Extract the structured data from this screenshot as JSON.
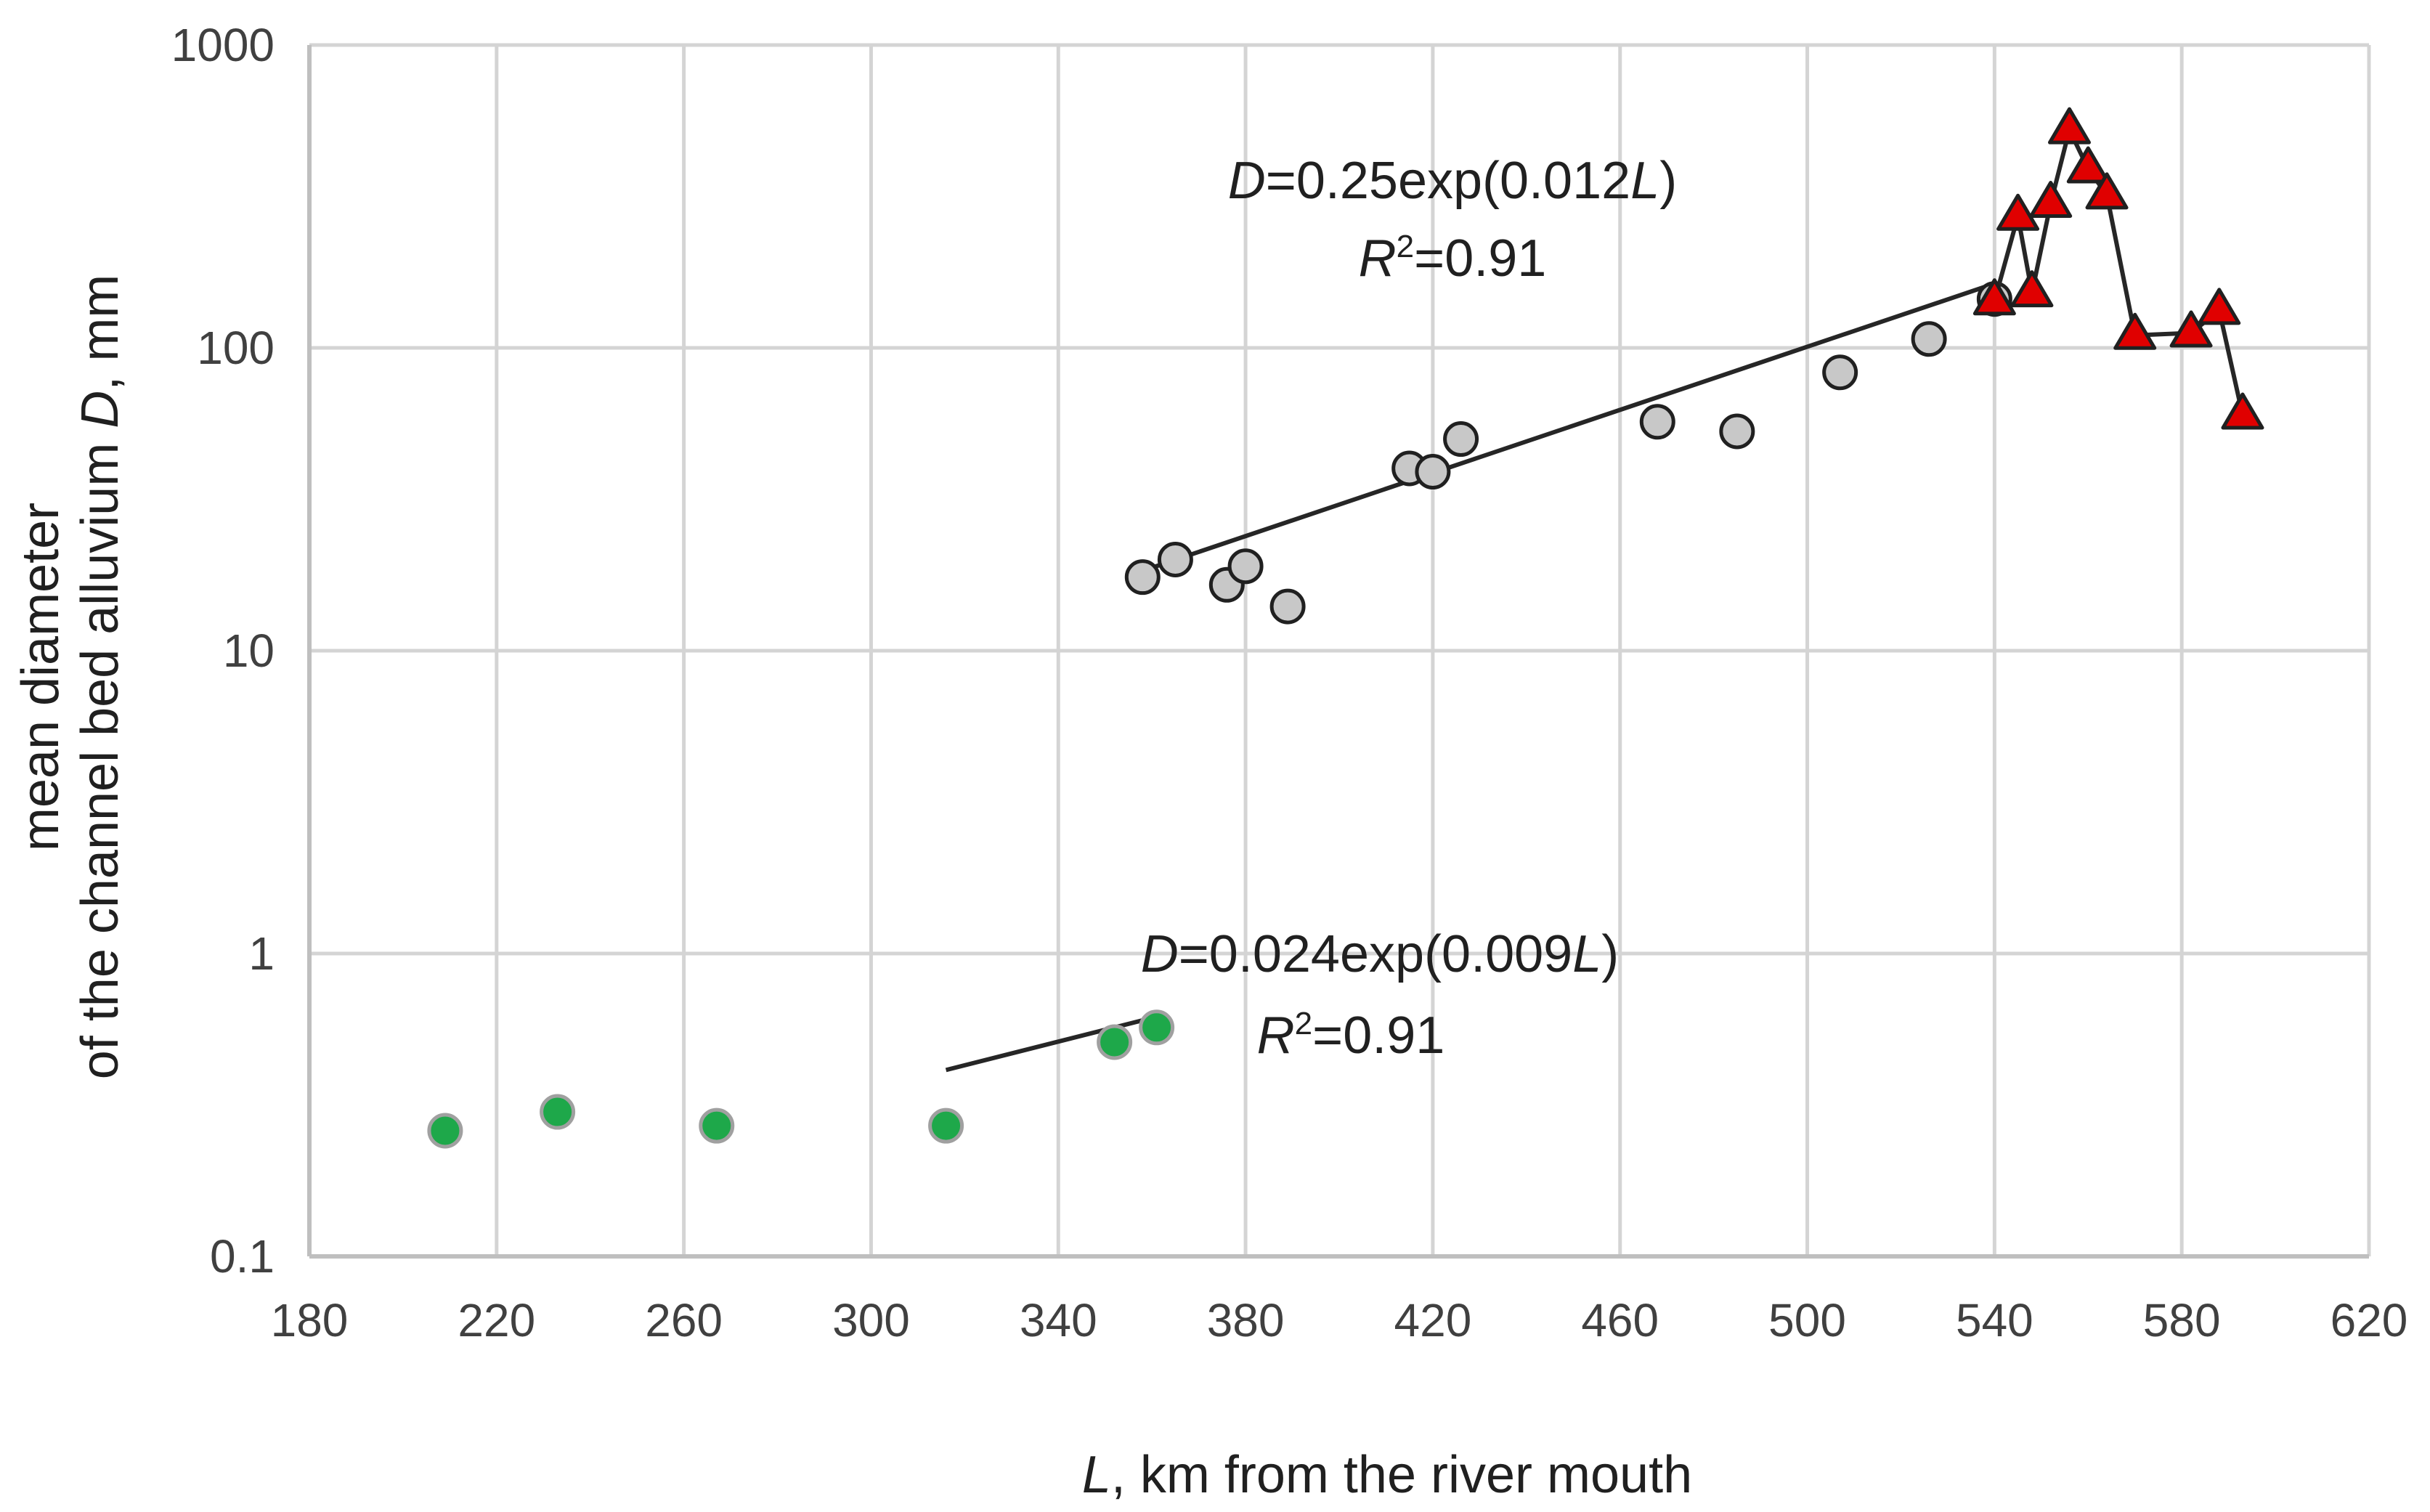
{
  "chart_data": {
    "type": "scatter",
    "xlabel_var": "L",
    "xlabel_rest": ", km from the river mouth",
    "ylabel_line1": "mean diameter",
    "ylabel_line2_prefix": "of the channel bed alluvium ",
    "ylabel_var": "D",
    "ylabel_line2_suffix": ", mm",
    "xlim": [
      180,
      620
    ],
    "ylim": [
      0.1,
      1000
    ],
    "yscale": "log",
    "grid": true,
    "x_ticks": [
      180,
      220,
      260,
      300,
      340,
      380,
      420,
      460,
      500,
      540,
      580,
      620
    ],
    "x_tick_labels": [
      "180",
      "220",
      "260",
      "300",
      "340",
      "380",
      "420",
      "460",
      "500",
      "540",
      "580",
      "620"
    ],
    "y_ticks": [
      0.1,
      1,
      10,
      100,
      1000
    ],
    "y_tick_labels": [
      "0.1",
      "1",
      "10",
      "100",
      "1000"
    ],
    "series": [
      {
        "name": "green points",
        "marker": "circle",
        "color": "#1ea84a",
        "edge": "#a0a0a0",
        "x": [
          209,
          233,
          267,
          316,
          352,
          361
        ],
        "y": [
          0.26,
          0.3,
          0.27,
          0.27,
          0.51,
          0.57
        ]
      },
      {
        "name": "grey points",
        "marker": "circle",
        "color": "#c8c8c8",
        "edge": "#202020",
        "x": [
          358,
          365,
          376,
          380,
          389,
          415,
          420,
          426,
          468,
          485,
          507,
          526,
          540
        ],
        "y": [
          17.5,
          20,
          16.5,
          19,
          14,
          40,
          39,
          50,
          57,
          53,
          83,
          107,
          145
        ]
      },
      {
        "name": "red triangles",
        "marker": "triangle",
        "color": "#e00000",
        "edge": "#202020",
        "connected": true,
        "x": [
          540,
          545,
          548,
          552,
          556,
          560,
          564,
          570,
          582,
          588,
          593
        ],
        "y": [
          143,
          272,
          152,
          300,
          525,
          390,
          320,
          110,
          112,
          133,
          60
        ]
      }
    ],
    "fits": [
      {
        "x_range": [
          316,
          361
        ],
        "a": 0.024,
        "b": 0.009,
        "eq_prefix": "=0.024exp(0.009",
        "eq_var1": "D",
        "eq_var2": "L",
        "eq_suffix": ")",
        "r2_var": "R",
        "r2_sup": "2",
        "r2_value": "=0.91"
      },
      {
        "x_range": [
          356,
          540
        ],
        "a": 0.25,
        "b": 0.012,
        "eq_prefix": "=0.25exp(0.012",
        "eq_var1": "D",
        "eq_var2": "L",
        "eq_suffix": ")",
        "r2_var": "R",
        "r2_sup": "2",
        "r2_value": "=0.91"
      }
    ]
  }
}
